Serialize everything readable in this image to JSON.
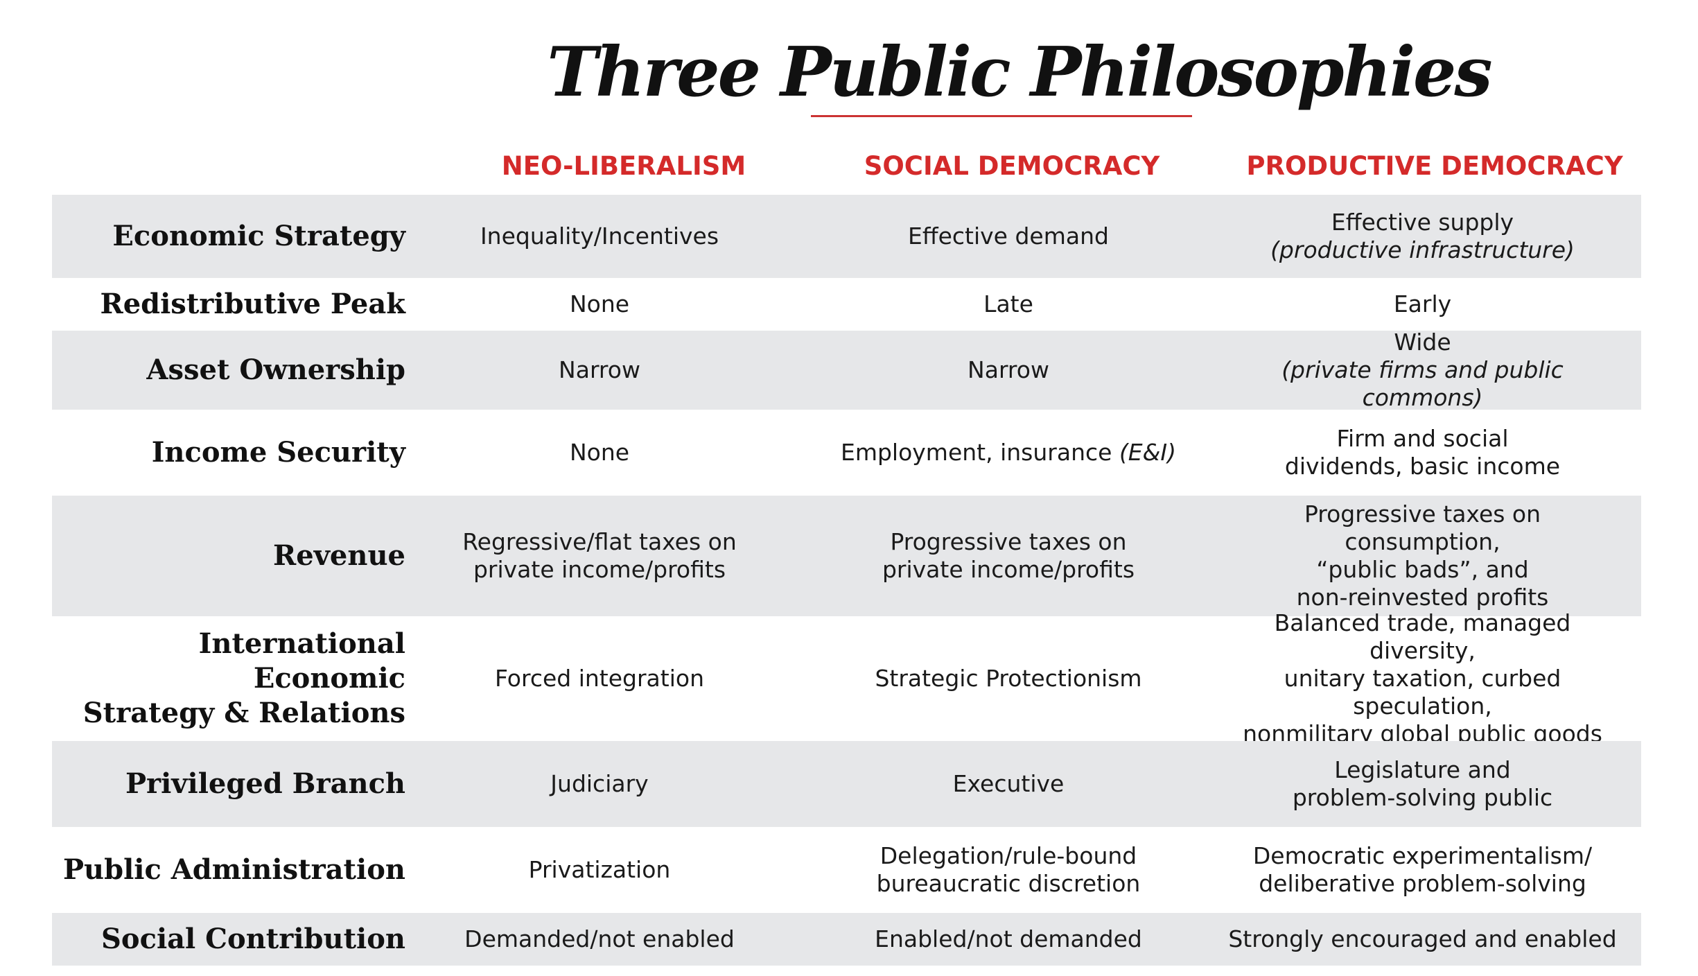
{
  "title": "Three Public Philosophies",
  "columns": [
    "NEO-LIBERALISM",
    "SOCIAL DEMOCRACY",
    "PRODUCTIVE DEMOCRACY"
  ],
  "accent_color": "#d42a2a",
  "rows": [
    {
      "label": [
        "Economic Strategy"
      ],
      "neo": [
        "Inequality/Incentives"
      ],
      "social": [
        "Effective demand"
      ],
      "productive": [
        "Effective supply",
        "(productive infrastructure)"
      ]
    },
    {
      "label": [
        "Redistributive Peak"
      ],
      "neo": [
        "None"
      ],
      "social": [
        "Late"
      ],
      "productive": [
        "Early"
      ]
    },
    {
      "label": [
        "Asset Ownership"
      ],
      "neo": [
        "Narrow"
      ],
      "social": [
        "Narrow"
      ],
      "productive": [
        "Wide",
        "(private firms and public commons)"
      ]
    },
    {
      "label": [
        "Income Security"
      ],
      "neo": [
        "None"
      ],
      "social_main": "Employment, insurance",
      "social_italic": "(E&I)",
      "productive": [
        "Firm and social",
        "dividends, basic income"
      ]
    },
    {
      "label": [
        "Revenue"
      ],
      "neo": [
        "Regressive/flat taxes on",
        "private income/profits"
      ],
      "social": [
        "Progressive taxes on",
        "private income/profits"
      ],
      "productive": [
        "Progressive taxes on consumption,",
        "“public bads”, and",
        "non-reinvested profits"
      ]
    },
    {
      "label": [
        "International Economic",
        "Strategy & Relations"
      ],
      "neo": [
        "Forced integration"
      ],
      "social": [
        "Strategic Protectionism"
      ],
      "productive": [
        "Balanced trade, managed diversity,",
        "unitary taxation, curbed speculation,",
        "nonmilitary global public goods"
      ]
    },
    {
      "label": [
        "Privileged Branch"
      ],
      "neo": [
        "Judiciary"
      ],
      "social": [
        "Executive"
      ],
      "productive": [
        "Legislature and",
        "problem-solving public"
      ]
    },
    {
      "label": [
        "Public Administration"
      ],
      "neo": [
        "Privatization"
      ],
      "social": [
        "Delegation/rule-bound",
        "bureaucratic discretion"
      ],
      "productive": [
        "Democratic experimentalism/",
        "deliberative problem-solving"
      ]
    },
    {
      "label": [
        "Social Contribution"
      ],
      "neo": [
        "Demanded/not enabled"
      ],
      "social": [
        "Enabled/not demanded"
      ],
      "productive": [
        "Strongly encouraged and enabled"
      ]
    }
  ]
}
